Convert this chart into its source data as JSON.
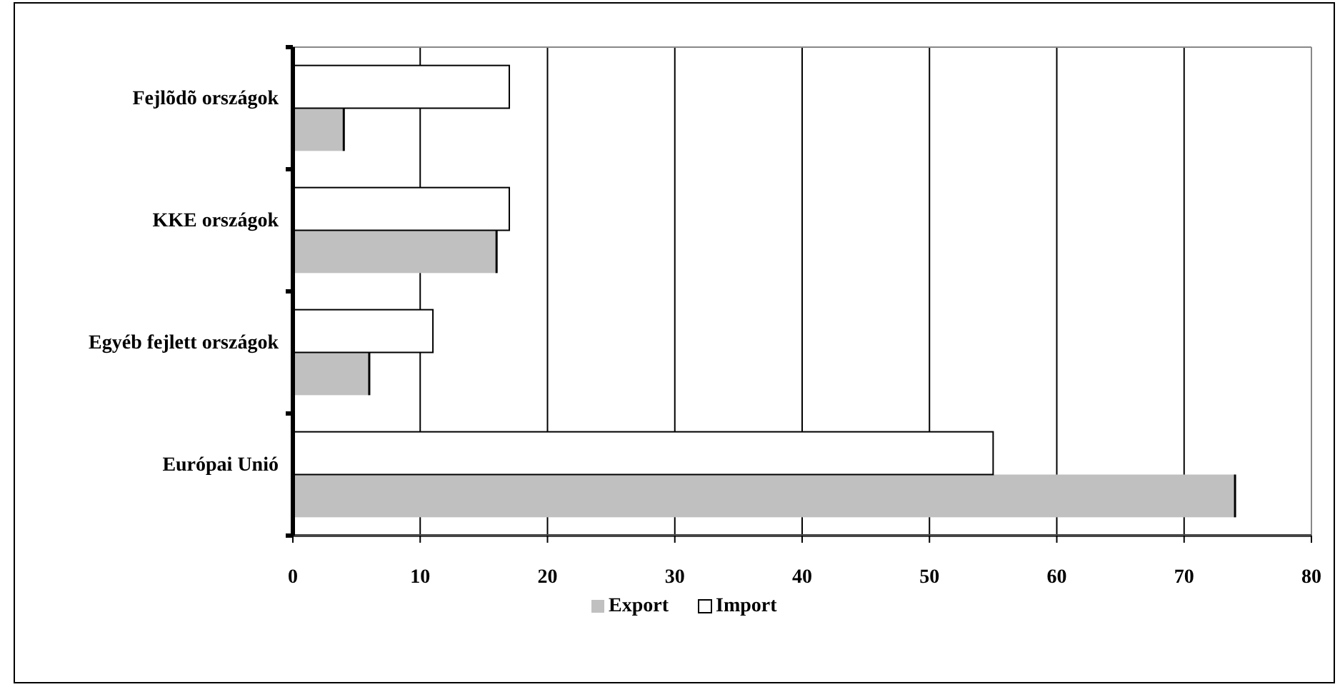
{
  "chart_data": {
    "type": "bar",
    "orientation": "horizontal",
    "categories": [
      "Fejlõdõ országok",
      "KKE országok",
      "Egyéb fejlett országok",
      "Európai Unió"
    ],
    "series": [
      {
        "name": "Export",
        "color": "#c0c0c0",
        "values": [
          4,
          16,
          6,
          74
        ]
      },
      {
        "name": "Import",
        "color": "#ffffff",
        "values": [
          17,
          17,
          11,
          55
        ]
      }
    ],
    "xlim": [
      0,
      80
    ],
    "xticks": [
      0,
      10,
      20,
      30,
      40,
      50,
      60,
      70,
      80
    ],
    "grid": "x",
    "legend": "bottom"
  }
}
